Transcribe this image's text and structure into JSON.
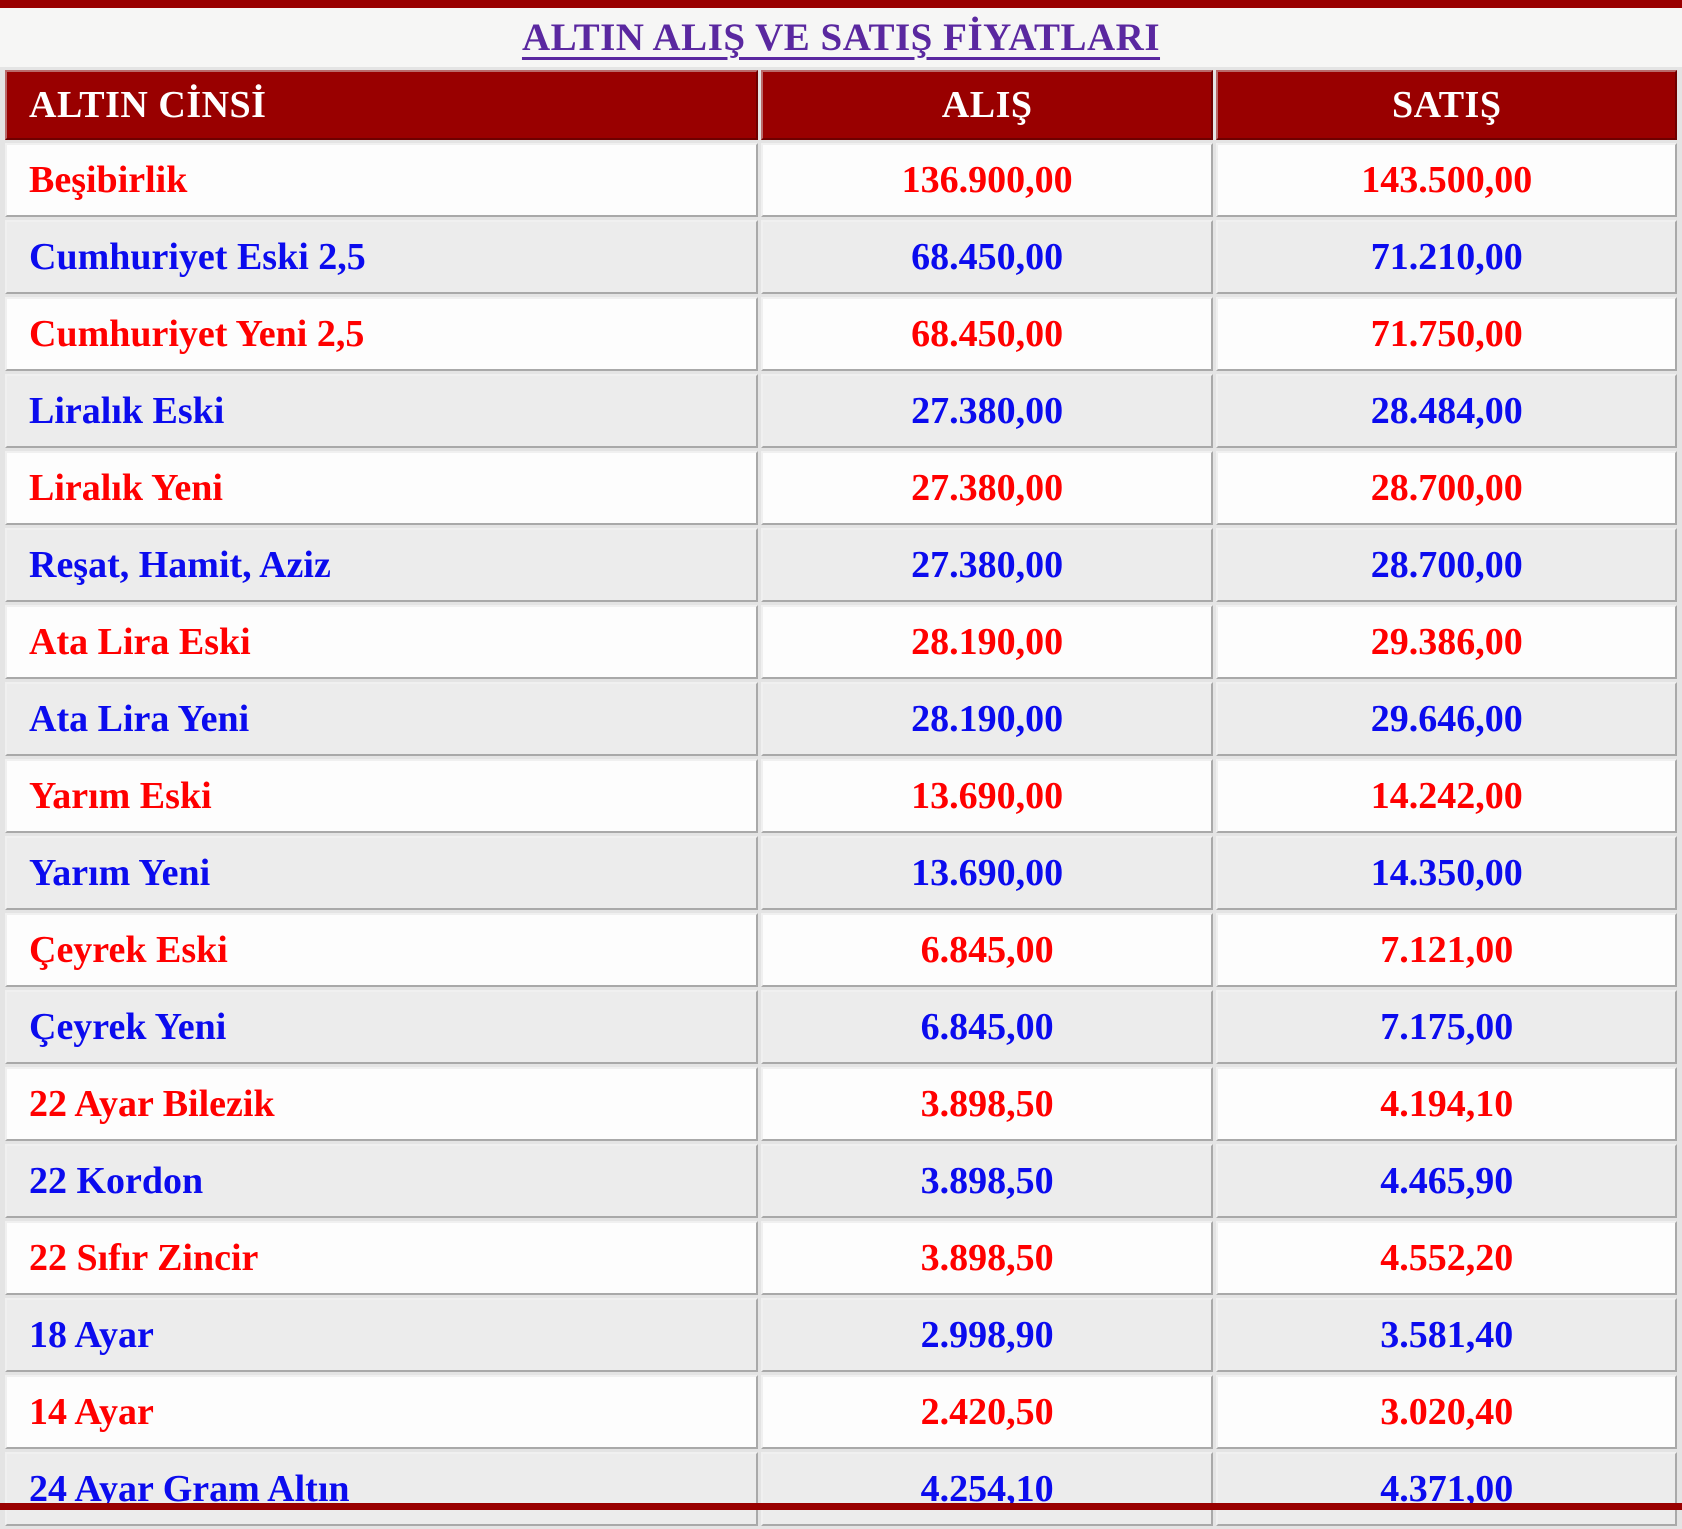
{
  "page": {
    "title": "ALTIN ALIŞ VE SATIŞ FİYATLARI"
  },
  "table": {
    "columns": [
      "ALTIN CİNSİ",
      "ALIŞ",
      "SATIŞ"
    ],
    "rows": [
      {
        "label": "Beşibirlik",
        "alis": "136.900,00",
        "satis": "143.500,00",
        "color": "red"
      },
      {
        "label": "Cumhuriyet Eski 2,5",
        "alis": "68.450,00",
        "satis": "71.210,00",
        "color": "blue"
      },
      {
        "label": "Cumhuriyet Yeni 2,5",
        "alis": "68.450,00",
        "satis": "71.750,00",
        "color": "red"
      },
      {
        "label": "Liralık Eski",
        "alis": "27.380,00",
        "satis": "28.484,00",
        "color": "blue"
      },
      {
        "label": "Liralık Yeni",
        "alis": "27.380,00",
        "satis": "28.700,00",
        "color": "red"
      },
      {
        "label": "Reşat, Hamit, Aziz",
        "alis": "27.380,00",
        "satis": "28.700,00",
        "color": "blue"
      },
      {
        "label": "Ata Lira Eski",
        "alis": "28.190,00",
        "satis": "29.386,00",
        "color": "red"
      },
      {
        "label": "Ata Lira Yeni",
        "alis": "28.190,00",
        "satis": "29.646,00",
        "color": "blue"
      },
      {
        "label": "Yarım Eski",
        "alis": "13.690,00",
        "satis": "14.242,00",
        "color": "red"
      },
      {
        "label": "Yarım Yeni",
        "alis": "13.690,00",
        "satis": "14.350,00",
        "color": "blue"
      },
      {
        "label": "Çeyrek Eski",
        "alis": "6.845,00",
        "satis": "7.121,00",
        "color": "red"
      },
      {
        "label": "Çeyrek Yeni",
        "alis": "6.845,00",
        "satis": "7.175,00",
        "color": "blue"
      },
      {
        "label": "22 Ayar Bilezik",
        "alis": "3.898,50",
        "satis": "4.194,10",
        "color": "red"
      },
      {
        "label": "22 Kordon",
        "alis": "3.898,50",
        "satis": "4.465,90",
        "color": "blue"
      },
      {
        "label": "22 Sıfır Zincir",
        "alis": "3.898,50",
        "satis": "4.552,20",
        "color": "red"
      },
      {
        "label": "18 Ayar",
        "alis": "2.998,90",
        "satis": "3.581,40",
        "color": "blue"
      },
      {
        "label": "14 Ayar",
        "alis": "2.420,50",
        "satis": "3.020,40",
        "color": "red"
      },
      {
        "label": "24 Ayar Gram Altın",
        "alis": "4.254,10",
        "satis": "4.371,00",
        "color": "blue"
      }
    ]
  },
  "colors": {
    "header_bg": "#990000",
    "price_red": "#ff0000",
    "price_blue": "#0b0bee",
    "title_purple": "#5a28a0"
  }
}
